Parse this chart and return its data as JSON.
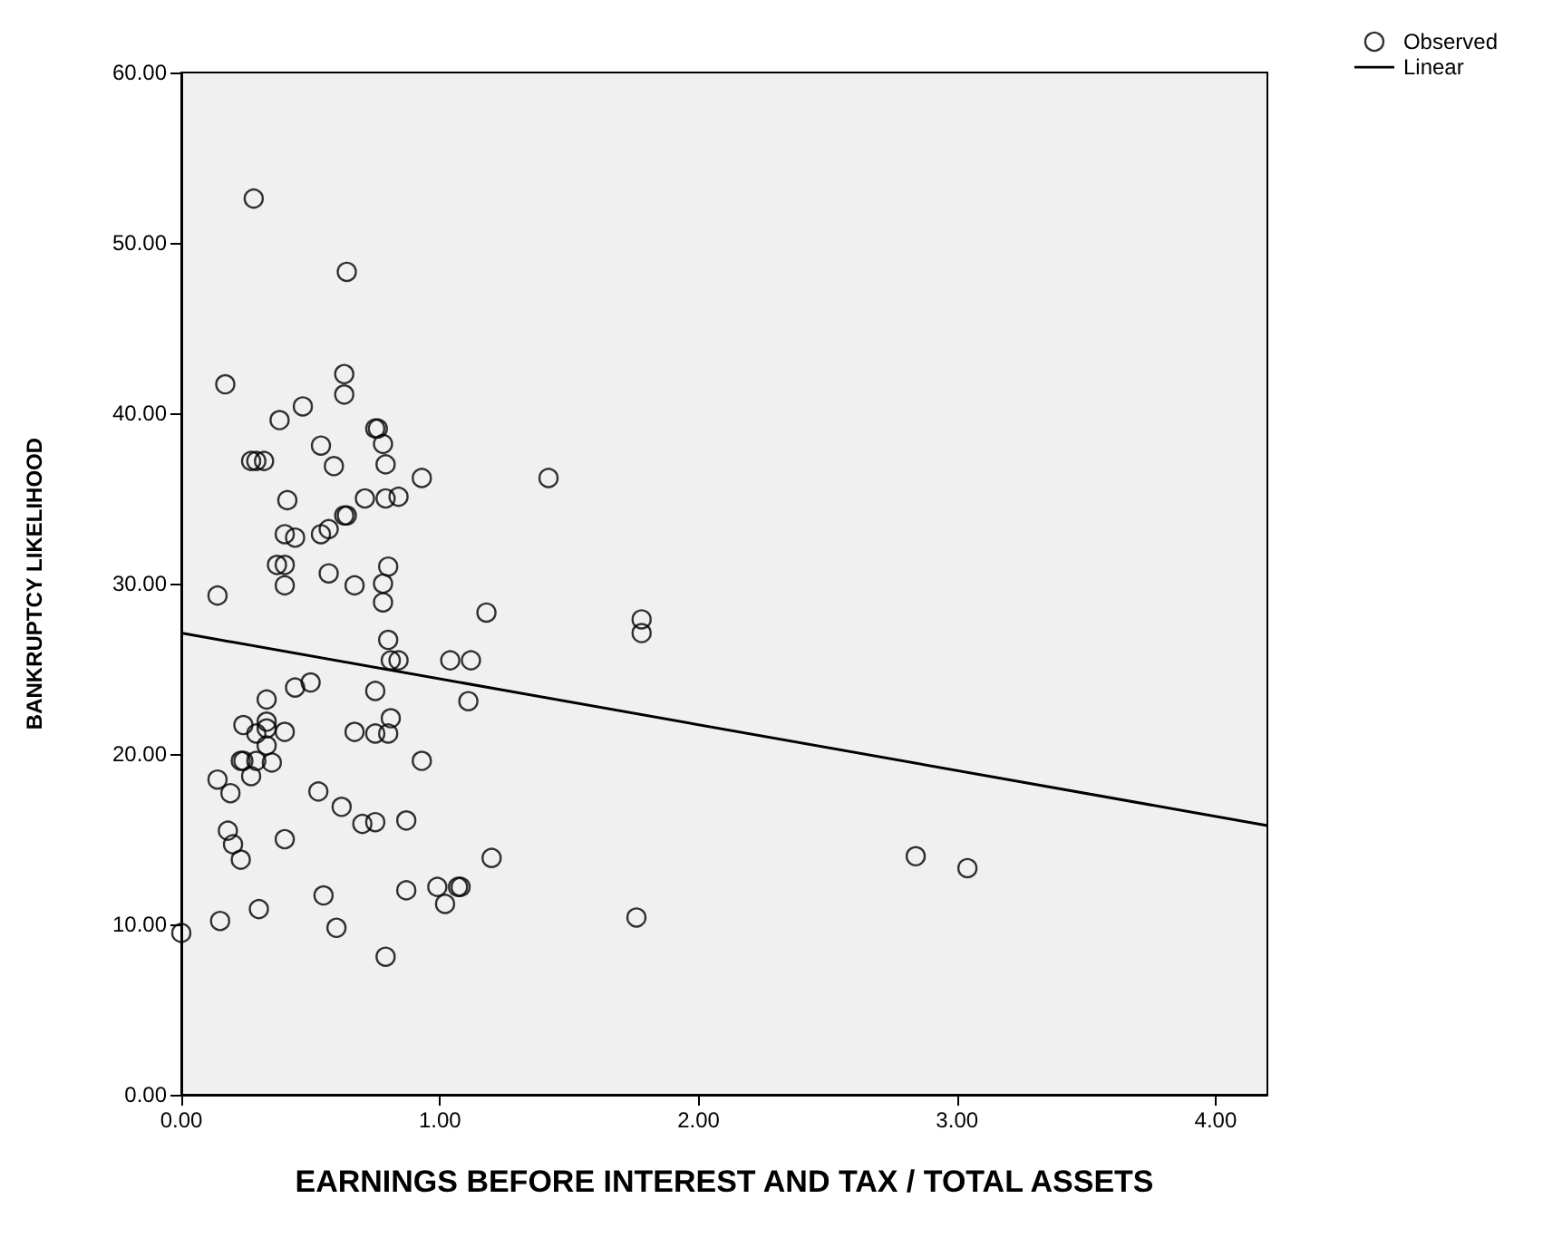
{
  "chart_data": {
    "type": "scatter",
    "xlabel": "EARNINGS BEFORE INTEREST AND TAX / TOTAL ASSETS",
    "ylabel": "BANKRUPTCY LIKELIHOOD",
    "xlim": [
      0,
      4.2
    ],
    "ylim": [
      0,
      60
    ],
    "xticks": [
      {
        "value": 0,
        "label": "0.00"
      },
      {
        "value": 1,
        "label": "1.00"
      },
      {
        "value": 2,
        "label": "2.00"
      },
      {
        "value": 3,
        "label": "3.00"
      },
      {
        "value": 4,
        "label": "4.00"
      }
    ],
    "yticks": [
      {
        "value": 0,
        "label": "0.00"
      },
      {
        "value": 10,
        "label": "10.00"
      },
      {
        "value": 20,
        "label": "20.00"
      },
      {
        "value": 30,
        "label": "30.00"
      },
      {
        "value": 40,
        "label": "40.00"
      },
      {
        "value": 50,
        "label": "50.00"
      },
      {
        "value": 60,
        "label": "60.00"
      }
    ],
    "grid": false,
    "legend": "top right",
    "series": [
      {
        "name": "Observed",
        "color": "#000000",
        "marker": "circle",
        "x": [
          0.28,
          0.64,
          0.17,
          0.63,
          0.63,
          0.47,
          0.38,
          0.75,
          0.76,
          0.78,
          0.54,
          0.59,
          0.79,
          0.27,
          0.29,
          0.32,
          0.93,
          1.42,
          0.41,
          0.71,
          0.79,
          0.84,
          0.63,
          0.64,
          0.4,
          0.44,
          0.54,
          0.57,
          0.37,
          0.4,
          0.57,
          0.8,
          0.14,
          0.4,
          0.67,
          0.78,
          0.78,
          1.18,
          1.78,
          1.78,
          0.8,
          0.81,
          0.84,
          1.04,
          1.12,
          0.5,
          0.44,
          0.75,
          1.11,
          0.33,
          0.24,
          0.33,
          0.29,
          0.33,
          0.4,
          0.33,
          0.23,
          0.24,
          0.29,
          0.35,
          0.67,
          0.75,
          0.8,
          0.81,
          0.93,
          0.14,
          0.19,
          0.27,
          0.53,
          0.62,
          0.7,
          0.75,
          0.87,
          0.18,
          0.2,
          0.23,
          0.4,
          1.2,
          0.55,
          0.87,
          0.99,
          1.07,
          1.08,
          1.02,
          0.3,
          0.15,
          0.0,
          0.6,
          1.76,
          0.79,
          2.84,
          3.04
        ],
        "values": [
          52.6,
          48.3,
          41.7,
          42.3,
          41.1,
          40.4,
          39.6,
          39.1,
          39.1,
          38.2,
          38.1,
          36.9,
          37.0,
          37.2,
          37.2,
          37.2,
          36.2,
          36.2,
          34.9,
          35.0,
          35.0,
          35.1,
          34.0,
          34.0,
          32.9,
          32.7,
          32.9,
          33.2,
          31.1,
          31.1,
          30.6,
          31.0,
          29.3,
          29.9,
          29.9,
          30.0,
          28.9,
          28.3,
          27.9,
          27.1,
          26.7,
          25.5,
          25.5,
          25.5,
          25.5,
          24.2,
          23.9,
          23.7,
          23.1,
          23.2,
          21.7,
          21.9,
          21.2,
          21.5,
          21.3,
          20.5,
          19.6,
          19.6,
          19.6,
          19.5,
          21.3,
          21.2,
          21.2,
          22.1,
          19.6,
          18.5,
          17.7,
          18.7,
          17.8,
          16.9,
          15.9,
          16.0,
          16.1,
          15.5,
          14.7,
          13.8,
          15.0,
          13.9,
          11.7,
          12.0,
          12.2,
          12.2,
          12.2,
          11.2,
          10.9,
          10.2,
          9.5,
          9.8,
          10.4,
          8.1,
          14.0,
          13.3
        ]
      },
      {
        "name": "Linear",
        "type": "line",
        "color": "#000000",
        "marker": "none",
        "line_style": "solid",
        "x": [
          0,
          4.2
        ],
        "values": [
          27.1,
          15.8
        ]
      }
    ]
  }
}
